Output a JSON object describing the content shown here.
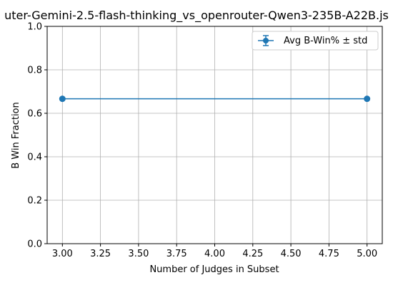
{
  "chart_data": {
    "type": "line",
    "title": "uter-Gemini-2.5-flash-thinking_vs_openrouter-Qwen3-235B-A22B.js",
    "xlabel": "Number of Judges in Subset",
    "ylabel": "B Win Fraction",
    "xlim": [
      2.9,
      5.1
    ],
    "ylim": [
      0.0,
      1.0
    ],
    "xticks": [
      "3.00",
      "3.25",
      "3.50",
      "3.75",
      "4.00",
      "4.25",
      "4.50",
      "4.75",
      "5.00"
    ],
    "yticks": [
      "0.0",
      "0.2",
      "0.4",
      "0.6",
      "0.8",
      "1.0"
    ],
    "grid": true,
    "legend_position": "top-right",
    "series": [
      {
        "name": "Avg B-Win% ± std",
        "x": [
          3,
          5
        ],
        "y": [
          0.6667,
          0.6667
        ],
        "std": [
          0,
          0
        ],
        "color": "#1f77b4"
      }
    ]
  }
}
